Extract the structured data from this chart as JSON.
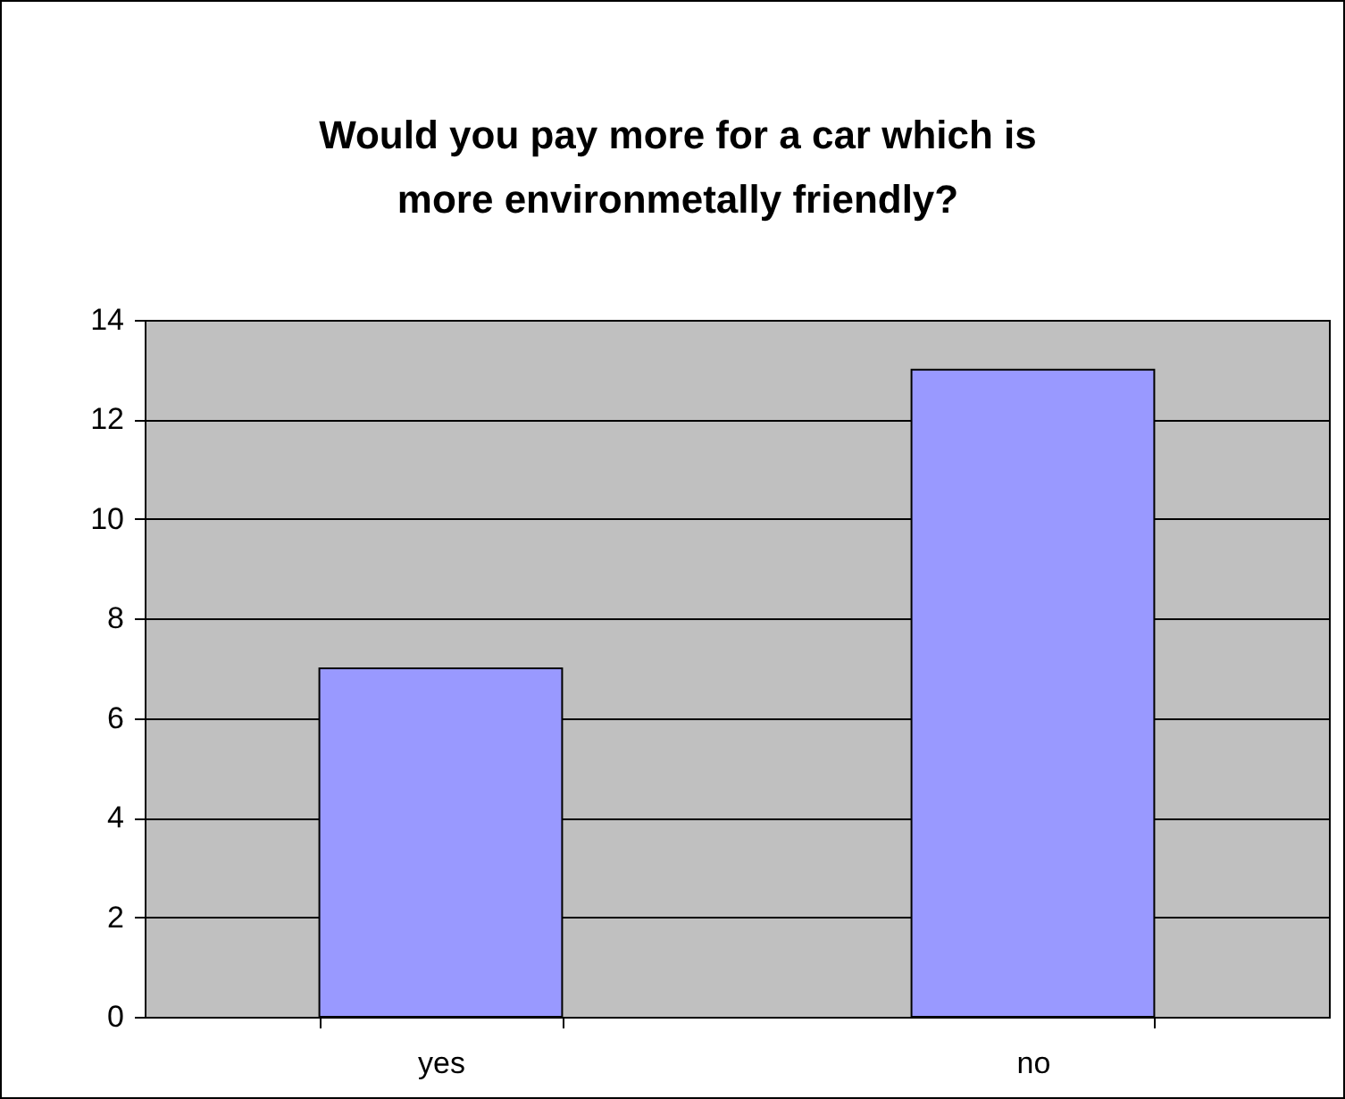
{
  "chart_data": {
    "type": "bar",
    "title": "Would you pay more for a car which is more environmetally friendly?",
    "categories": [
      "yes",
      "no"
    ],
    "values": [
      7,
      13
    ],
    "color": "#9999ff",
    "ylim": [
      0,
      14
    ],
    "yticks": [
      0,
      2,
      4,
      6,
      8,
      10,
      12,
      14
    ],
    "grid": "y"
  }
}
